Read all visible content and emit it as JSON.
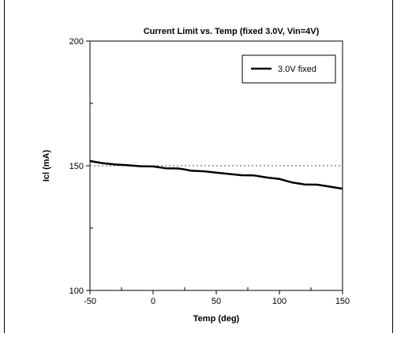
{
  "chart_data": {
    "type": "line",
    "title": "Current Limit vs. Temp (fixed 3.0V, Vin=4V)",
    "xlabel": "Temp (deg)",
    "ylabel": "Icl (mA)",
    "xlim": [
      -50,
      150
    ],
    "ylim": [
      100,
      200
    ],
    "x_ticks": [
      -50,
      0,
      50,
      100,
      150
    ],
    "y_ticks": [
      100,
      150,
      200
    ],
    "grid": false,
    "legend_position": "top-right",
    "reference_line": {
      "y": 150,
      "style": "dotted"
    },
    "series": [
      {
        "name": "3.0V fixed",
        "color": "#000000",
        "x": [
          -50,
          -40,
          -30,
          -20,
          -10,
          0,
          10,
          20,
          25,
          30,
          40,
          50,
          60,
          70,
          80,
          90,
          100,
          110,
          120,
          130,
          140,
          150
        ],
        "y": [
          151.9,
          151.0,
          150.5,
          150.2,
          149.8,
          149.7,
          149.0,
          148.9,
          148.5,
          148.0,
          147.8,
          147.2,
          146.7,
          146.2,
          146.1,
          145.3,
          144.7,
          143.3,
          142.5,
          142.4,
          141.6,
          140.8
        ]
      }
    ]
  }
}
